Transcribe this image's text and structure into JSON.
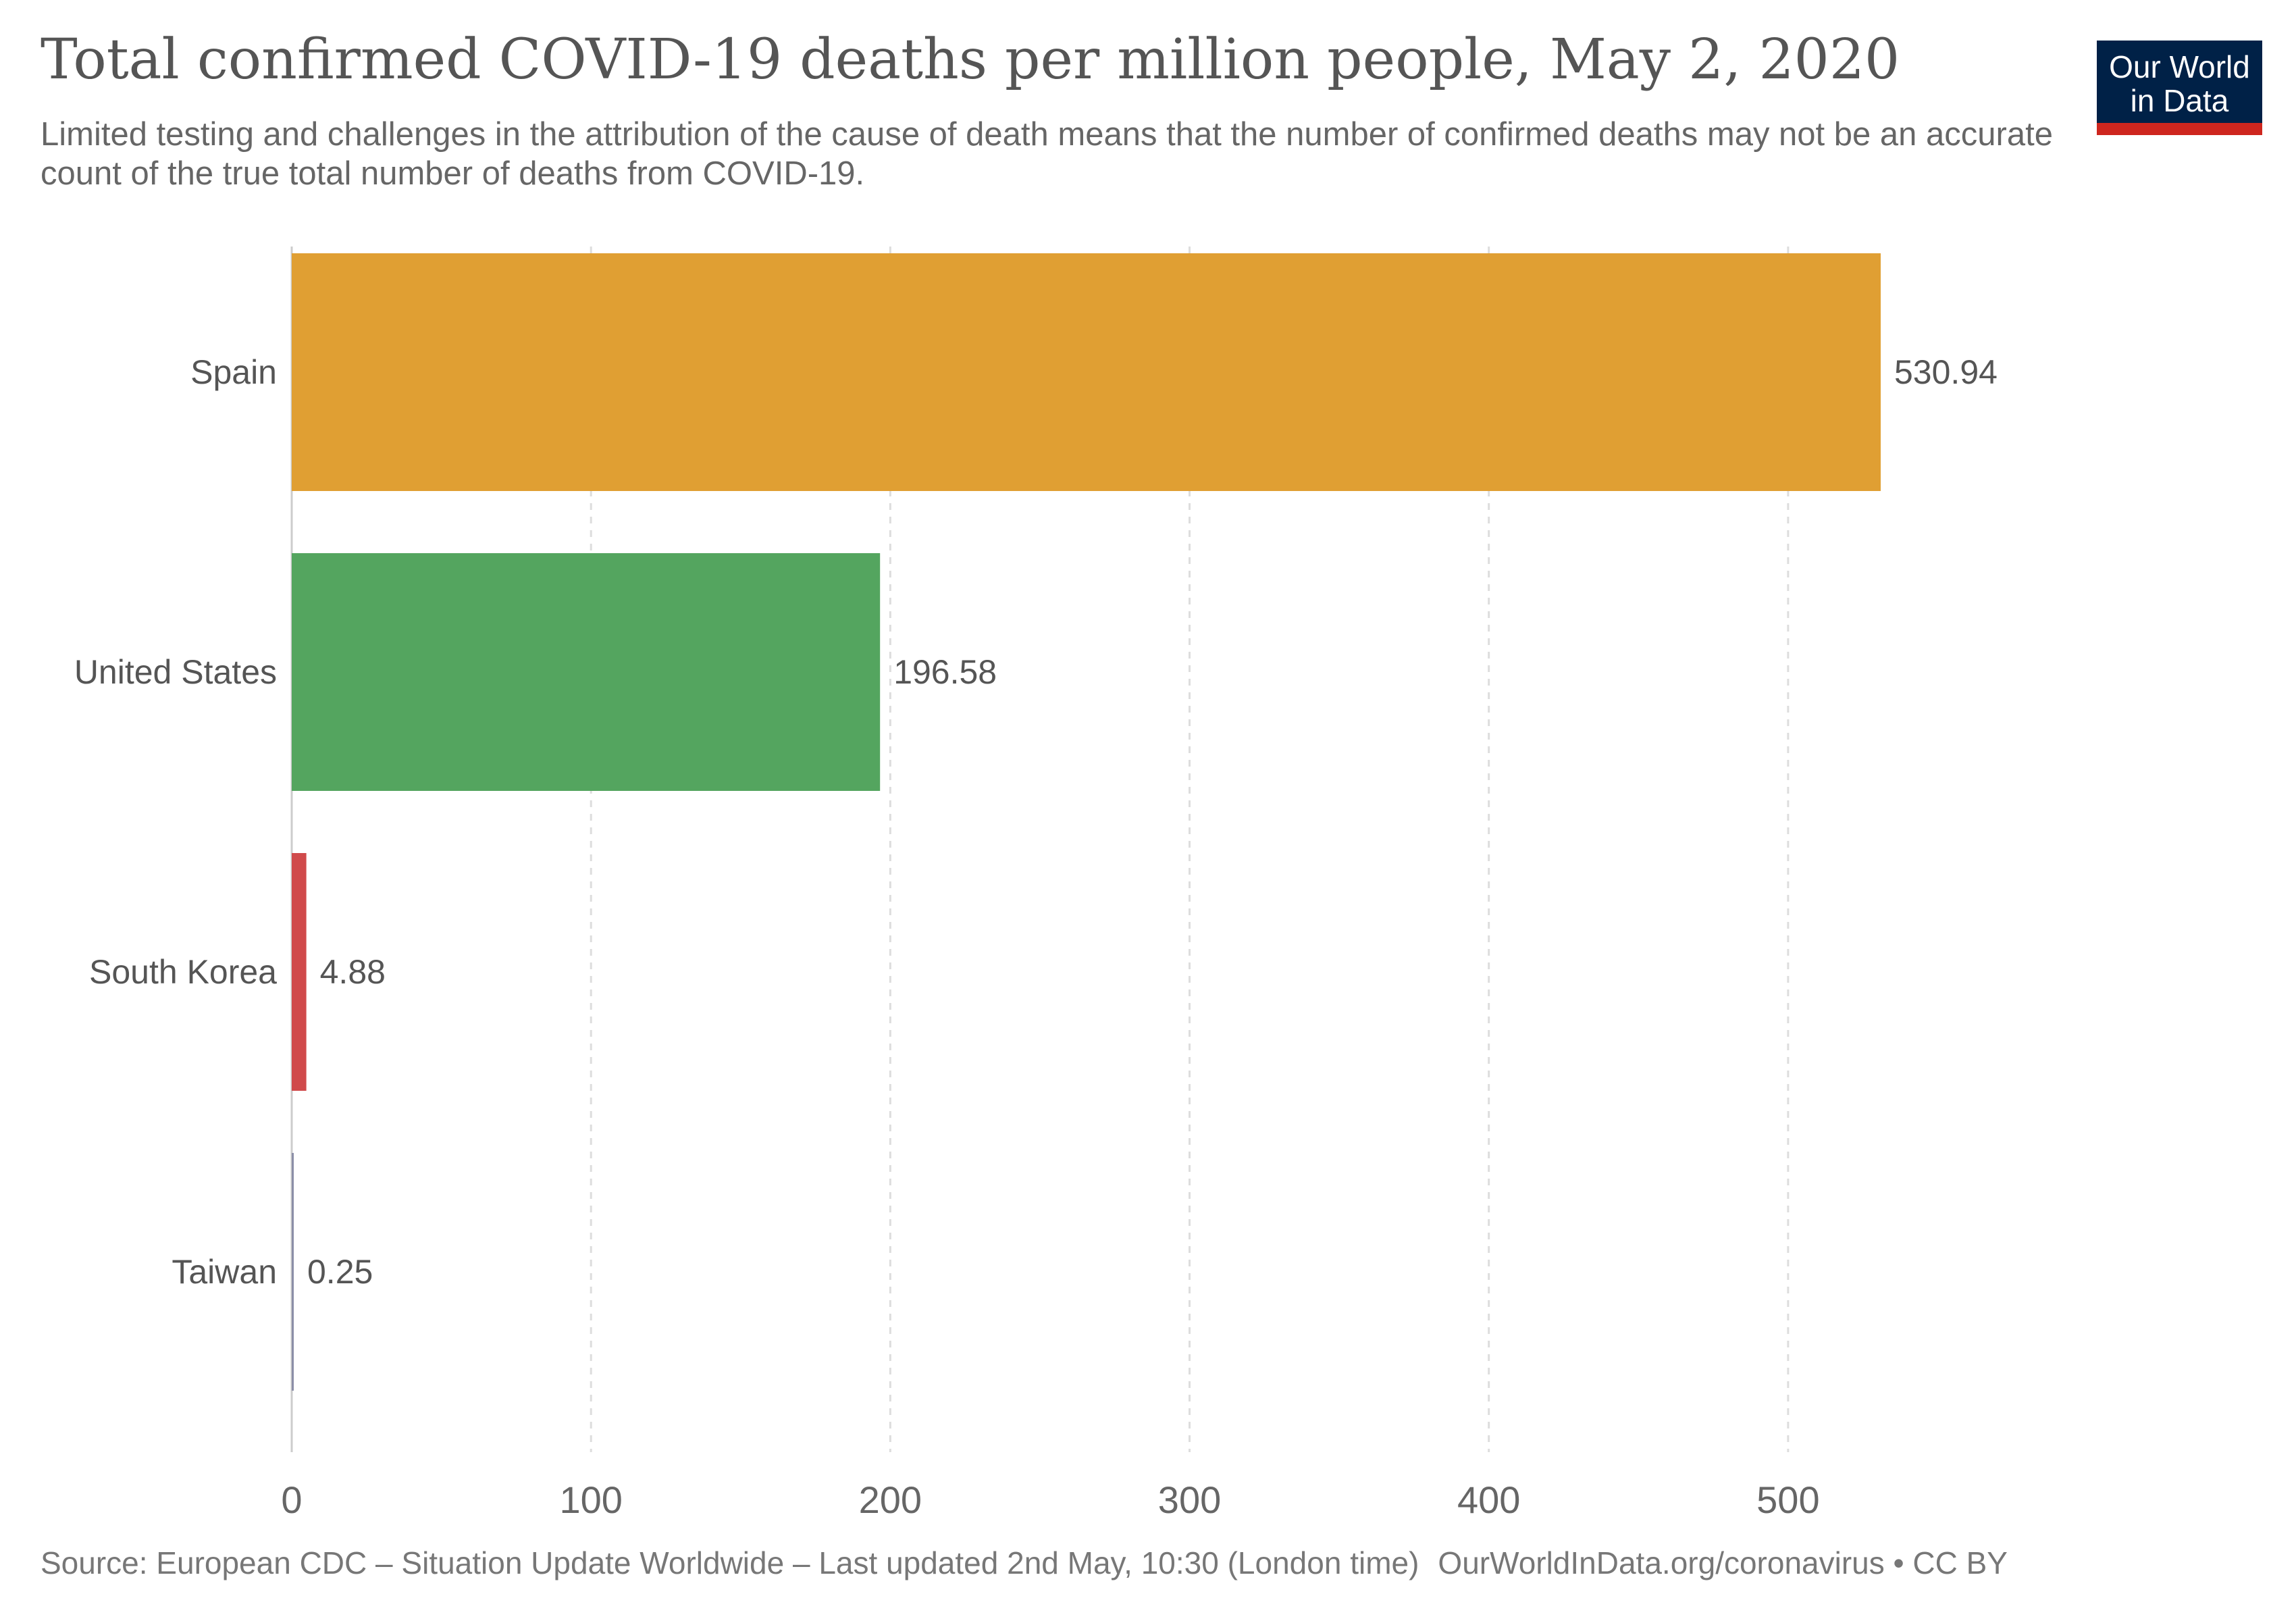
{
  "header": {
    "title": "Total confirmed COVID-19 deaths per million people, May 2, 2020",
    "subtitle": "Limited testing and challenges in the attribution of the cause of death means that the number of confirmed deaths may not be an accurate count of the true total number of deaths from COVID-19.",
    "logo_line1": "Our World",
    "logo_line2": "in Data"
  },
  "footer": {
    "source": "Source: European CDC – Situation Update Worldwide – Last updated 2nd May, 10:30 (London time)",
    "site": "OurWorldInData.org/coronavirus • CC BY"
  },
  "colors": {
    "logo_background": "#002147",
    "logo_accent": "#ce261e",
    "bar_spain": "#e09f33",
    "bar_united_states": "#54a55f",
    "bar_south_korea": "#d04a4b",
    "bar_taiwan": "#8c8fa8"
  },
  "chart_data": {
    "type": "bar",
    "orientation": "horizontal",
    "title": "Total confirmed COVID-19 deaths per million people, May 2, 2020",
    "categories": [
      "Spain",
      "United States",
      "South Korea",
      "Taiwan"
    ],
    "values": [
      530.94,
      196.58,
      4.88,
      0.25
    ],
    "value_labels": [
      "530.94",
      "196.58",
      "4.88",
      "0.25"
    ],
    "bar_colors": [
      "#e09f33",
      "#54a55f",
      "#d04a4b",
      "#8c8fa8"
    ],
    "xlabel": "",
    "ylabel": "",
    "xlim": [
      0,
      530.94
    ],
    "x_ticks": [
      0,
      100,
      200,
      300,
      400,
      500
    ],
    "x_tick_labels": [
      "0",
      "100",
      "200",
      "300",
      "400",
      "500"
    ],
    "grid": "vertical dashed",
    "legend": "none"
  }
}
